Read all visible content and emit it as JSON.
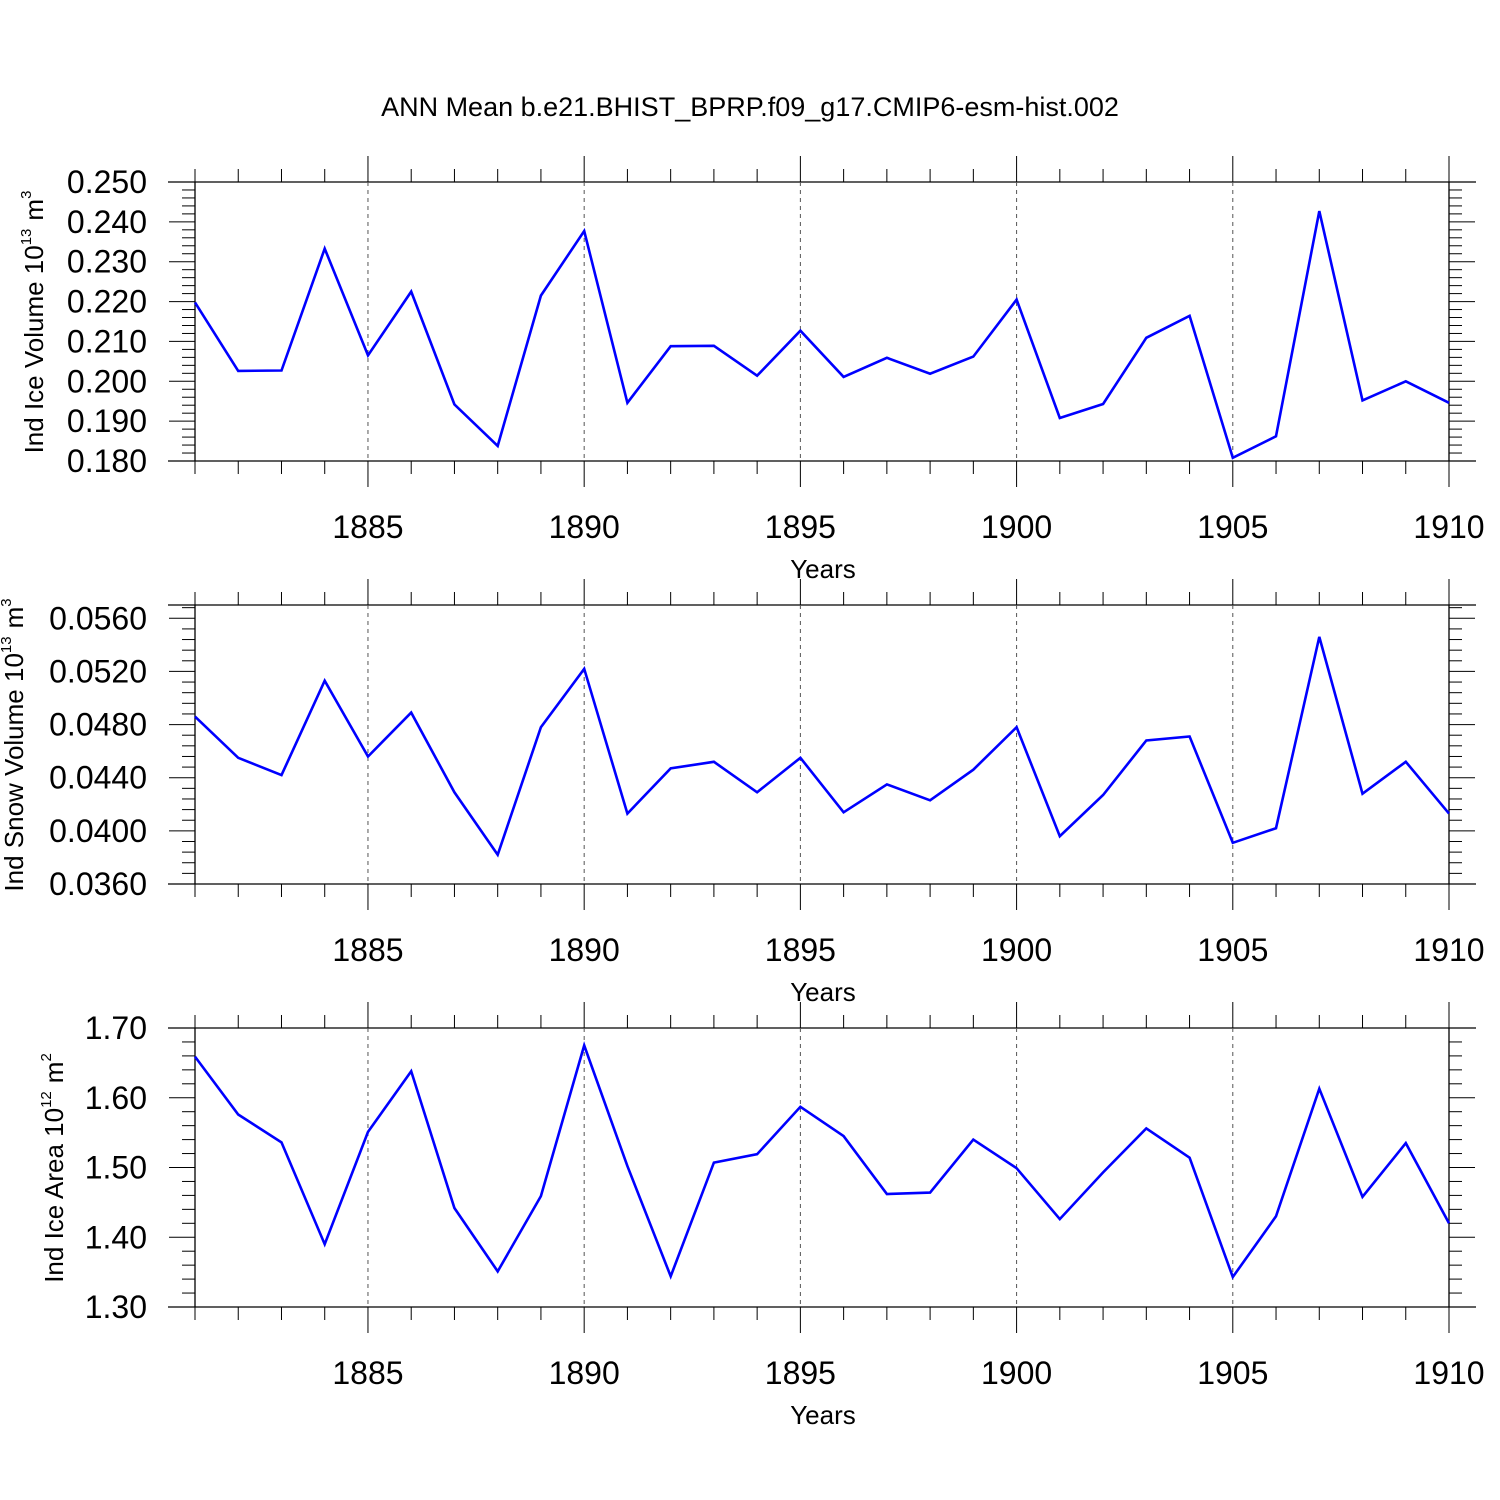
{
  "title": "ANN Mean b.e21.BHIST_BPRP.f09_g17.CMIP6-esm-hist.002",
  "colors": {
    "line": "#0000ff",
    "axis": "#000000",
    "grid": "#555555"
  },
  "chart_data": [
    {
      "type": "line",
      "ylabel": "Ind Ice Volume 10",
      "ylabel_exp": "13",
      "ylabel_unit": "m",
      "ylabel_unit_exp": "3",
      "xlabel": "Years",
      "xlim": [
        1881,
        1910
      ],
      "ylim": [
        0.18,
        0.25
      ],
      "yticks": [
        0.18,
        0.19,
        0.2,
        0.21,
        0.22,
        0.23,
        0.24,
        0.25
      ],
      "ytick_labels": [
        "0.180",
        "0.190",
        "0.200",
        "0.210",
        "0.220",
        "0.230",
        "0.240",
        "0.250"
      ],
      "xticks": [
        1885,
        1890,
        1895,
        1900,
        1905,
        1910
      ],
      "xtick_labels": [
        "1885",
        "1890",
        "1895",
        "1900",
        "1905",
        "1910"
      ],
      "grid_x": [
        1885,
        1890,
        1895,
        1900,
        1905
      ],
      "x": [
        1881,
        1882,
        1883,
        1884,
        1885,
        1886,
        1887,
        1888,
        1889,
        1890,
        1891,
        1892,
        1893,
        1894,
        1895,
        1896,
        1897,
        1898,
        1899,
        1900,
        1901,
        1902,
        1903,
        1904,
        1905,
        1906,
        1907,
        1908,
        1909,
        1910
      ],
      "series": [
        {
          "values": [
            0.2198,
            0.2026,
            0.2027,
            0.2333,
            0.2065,
            0.2225,
            0.1942,
            0.1838,
            0.2215,
            0.2377,
            0.1946,
            0.2088,
            0.2089,
            0.2014,
            0.2127,
            0.2011,
            0.2059,
            0.2019,
            0.2062,
            0.2205,
            0.1908,
            0.1943,
            0.2109,
            0.2164,
            0.1808,
            0.1862,
            0.2427,
            0.1952,
            0.2,
            0.1946
          ]
        }
      ]
    },
    {
      "type": "line",
      "ylabel": "Ind Snow Volume 10",
      "ylabel_exp": "13",
      "ylabel_unit": "m",
      "ylabel_unit_exp": "3",
      "xlabel": "Years",
      "xlim": [
        1881,
        1910
      ],
      "ylim": [
        0.036,
        0.057
      ],
      "yticks": [
        0.036,
        0.04,
        0.044,
        0.048,
        0.052,
        0.056
      ],
      "ytick_labels": [
        "0.0360",
        "0.0400",
        "0.0440",
        "0.0480",
        "0.0520",
        "0.0560"
      ],
      "xticks": [
        1885,
        1890,
        1895,
        1900,
        1905,
        1910
      ],
      "xtick_labels": [
        "1885",
        "1890",
        "1895",
        "1900",
        "1905",
        "1910"
      ],
      "grid_x": [
        1885,
        1890,
        1895,
        1900,
        1905
      ],
      "x": [
        1881,
        1882,
        1883,
        1884,
        1885,
        1886,
        1887,
        1888,
        1889,
        1890,
        1891,
        1892,
        1893,
        1894,
        1895,
        1896,
        1897,
        1898,
        1899,
        1900,
        1901,
        1902,
        1903,
        1904,
        1905,
        1906,
        1907,
        1908,
        1909,
        1910
      ],
      "series": [
        {
          "values": [
            0.0486,
            0.0455,
            0.0442,
            0.0513,
            0.0456,
            0.0489,
            0.0429,
            0.0382,
            0.0478,
            0.0522,
            0.0413,
            0.0447,
            0.0452,
            0.0429,
            0.0455,
            0.0414,
            0.0435,
            0.0423,
            0.0446,
            0.0478,
            0.0396,
            0.0427,
            0.0468,
            0.0471,
            0.0391,
            0.0402,
            0.0546,
            0.0428,
            0.0452,
            0.0413
          ]
        }
      ]
    },
    {
      "type": "line",
      "ylabel": "Ind Ice Area 10",
      "ylabel_exp": "12",
      "ylabel_unit": "m",
      "ylabel_unit_exp": "2",
      "xlabel": "Years",
      "xlim": [
        1881,
        1910
      ],
      "ylim": [
        1.3,
        1.7
      ],
      "yticks": [
        1.3,
        1.4,
        1.5,
        1.6,
        1.7
      ],
      "ytick_labels": [
        "1.30",
        "1.40",
        "1.50",
        "1.60",
        "1.70"
      ],
      "xticks": [
        1885,
        1890,
        1895,
        1900,
        1905,
        1910
      ],
      "xtick_labels": [
        "1885",
        "1890",
        "1895",
        "1900",
        "1905",
        "1910"
      ],
      "grid_x": [
        1885,
        1890,
        1895,
        1900,
        1905
      ],
      "x": [
        1881,
        1882,
        1883,
        1884,
        1885,
        1886,
        1887,
        1888,
        1889,
        1890,
        1891,
        1892,
        1893,
        1894,
        1895,
        1896,
        1897,
        1898,
        1899,
        1900,
        1901,
        1902,
        1903,
        1904,
        1905,
        1906,
        1907,
        1908,
        1909,
        1910
      ],
      "series": [
        {
          "values": [
            1.659,
            1.576,
            1.536,
            1.39,
            1.551,
            1.638,
            1.442,
            1.351,
            1.459,
            1.675,
            1.502,
            1.344,
            1.507,
            1.519,
            1.587,
            1.545,
            1.462,
            1.464,
            1.54,
            1.499,
            1.426,
            1.493,
            1.556,
            1.514,
            1.343,
            1.43,
            1.613,
            1.458,
            1.535,
            1.42
          ]
        }
      ]
    }
  ]
}
